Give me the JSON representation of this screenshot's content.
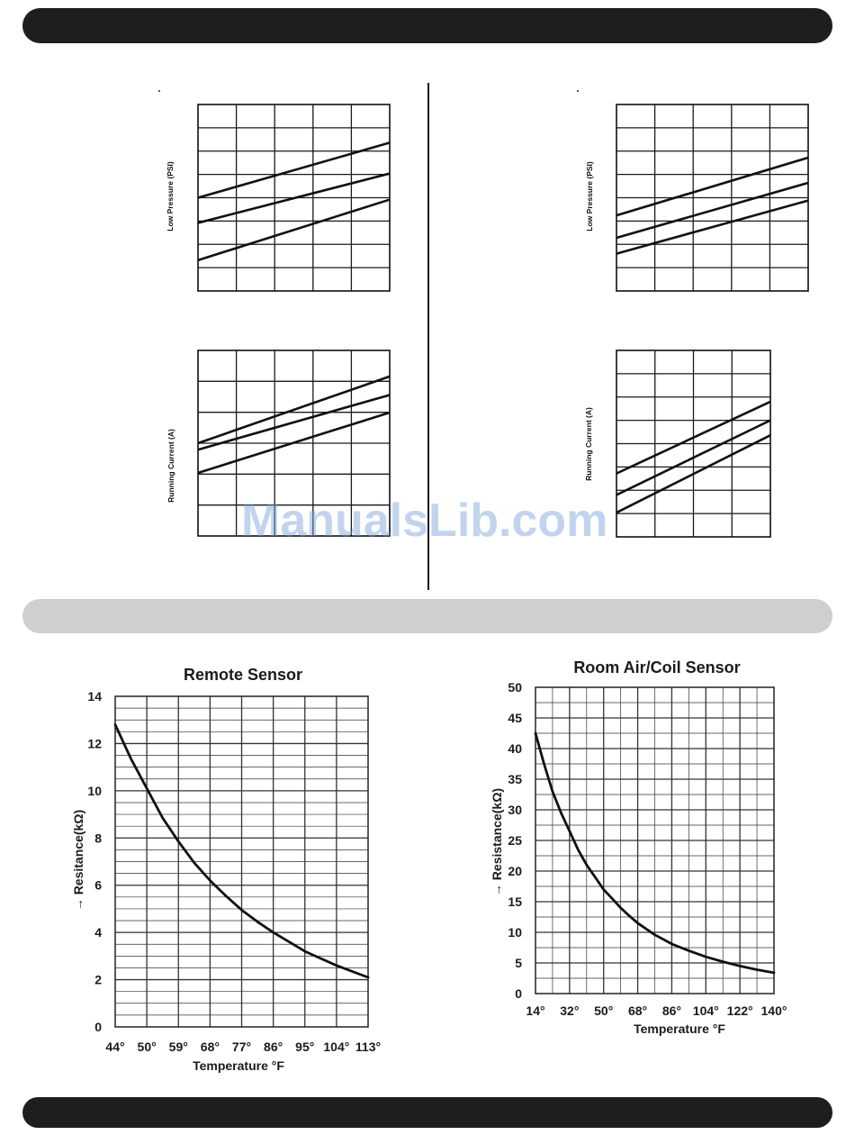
{
  "watermark": "ManualsLib.com",
  "chart_data": [
    {
      "id": "left-low-pressure",
      "type": "line",
      "ylabel": "Low Pressure (PSI)",
      "grid": true,
      "cols": 5,
      "rows": 8,
      "x": [
        0,
        1
      ],
      "series": [
        {
          "values": [
            0.5,
            0.795
          ]
        },
        {
          "values": [
            0.365,
            0.63
          ]
        },
        {
          "values": [
            0.165,
            0.49
          ]
        }
      ]
    },
    {
      "id": "left-running-current",
      "type": "line",
      "ylabel": "Running Current (A)",
      "grid": true,
      "cols": 5,
      "rows": 6,
      "x": [
        0,
        1
      ],
      "series": [
        {
          "values": [
            0.5,
            0.86
          ]
        },
        {
          "values": [
            0.465,
            0.76
          ]
        },
        {
          "values": [
            0.34,
            0.665
          ]
        }
      ]
    },
    {
      "id": "right-low-pressure",
      "type": "line",
      "ylabel": "Low Pressure (PSI)",
      "grid": true,
      "cols": 5,
      "rows": 8,
      "x": [
        0,
        1
      ],
      "series": [
        {
          "values": [
            0.405,
            0.715
          ]
        },
        {
          "values": [
            0.285,
            0.58
          ]
        },
        {
          "values": [
            0.2,
            0.485
          ]
        }
      ]
    },
    {
      "id": "right-running-current",
      "type": "line",
      "ylabel": "Running Current (A)",
      "grid": true,
      "cols": 4,
      "rows": 8,
      "x": [
        0,
        1
      ],
      "series": [
        {
          "values": [
            0.34,
            0.725
          ]
        },
        {
          "values": [
            0.225,
            0.625
          ]
        },
        {
          "values": [
            0.13,
            0.545
          ]
        }
      ]
    },
    {
      "id": "remote-sensor",
      "type": "line",
      "title": "Remote Sensor",
      "xlabel": "Temperature °F",
      "ylabel": "→ Resitance(kΩ)",
      "xticks": [
        "44°",
        "50°",
        "59°",
        "68°",
        "77°",
        "86°",
        "95°",
        "104°",
        "113°"
      ],
      "yticks": [
        "0",
        "2",
        "4",
        "6",
        "8",
        "10",
        "12",
        "14"
      ],
      "ylim": [
        0,
        14
      ],
      "grid": true,
      "series": [
        {
          "x": [
            44,
            47,
            50,
            54.5,
            59,
            63.5,
            68,
            72.5,
            77,
            81.5,
            86,
            90.5,
            95,
            99.5,
            104,
            108.5,
            113
          ],
          "values": [
            12.8,
            11.35,
            10.1,
            8.85,
            7.85,
            6.95,
            6.2,
            5.55,
            4.95,
            4.45,
            4.0,
            3.6,
            3.2,
            2.9,
            2.6,
            2.35,
            2.1
          ]
        }
      ]
    },
    {
      "id": "room-air-coil-sensor",
      "type": "line",
      "title": "Room Air/Coil Sensor",
      "xlabel": "Temperature °F",
      "ylabel": "→ Resistance(kΩ)",
      "xticks": [
        "14°",
        "32°",
        "50°",
        "68°",
        "86°",
        "104°",
        "122°",
        "140°"
      ],
      "yticks": [
        "0",
        "5",
        "10",
        "15",
        "20",
        "25",
        "30",
        "35",
        "40",
        "45",
        "50"
      ],
      "ylim": [
        0,
        50
      ],
      "grid": true,
      "series": [
        {
          "x": [
            14,
            18.5,
            23,
            27.5,
            32,
            36.5,
            41,
            45.5,
            50,
            54.5,
            59,
            63.5,
            68,
            77,
            86,
            95,
            104,
            113,
            122,
            131,
            140
          ],
          "values": [
            42.5,
            37.5,
            33.0,
            29.5,
            26.5,
            23.5,
            21.0,
            19.0,
            17.0,
            15.5,
            14.0,
            12.7,
            11.5,
            9.6,
            8.1,
            7.0,
            6.0,
            5.2,
            4.5,
            3.9,
            3.4
          ]
        }
      ]
    }
  ]
}
